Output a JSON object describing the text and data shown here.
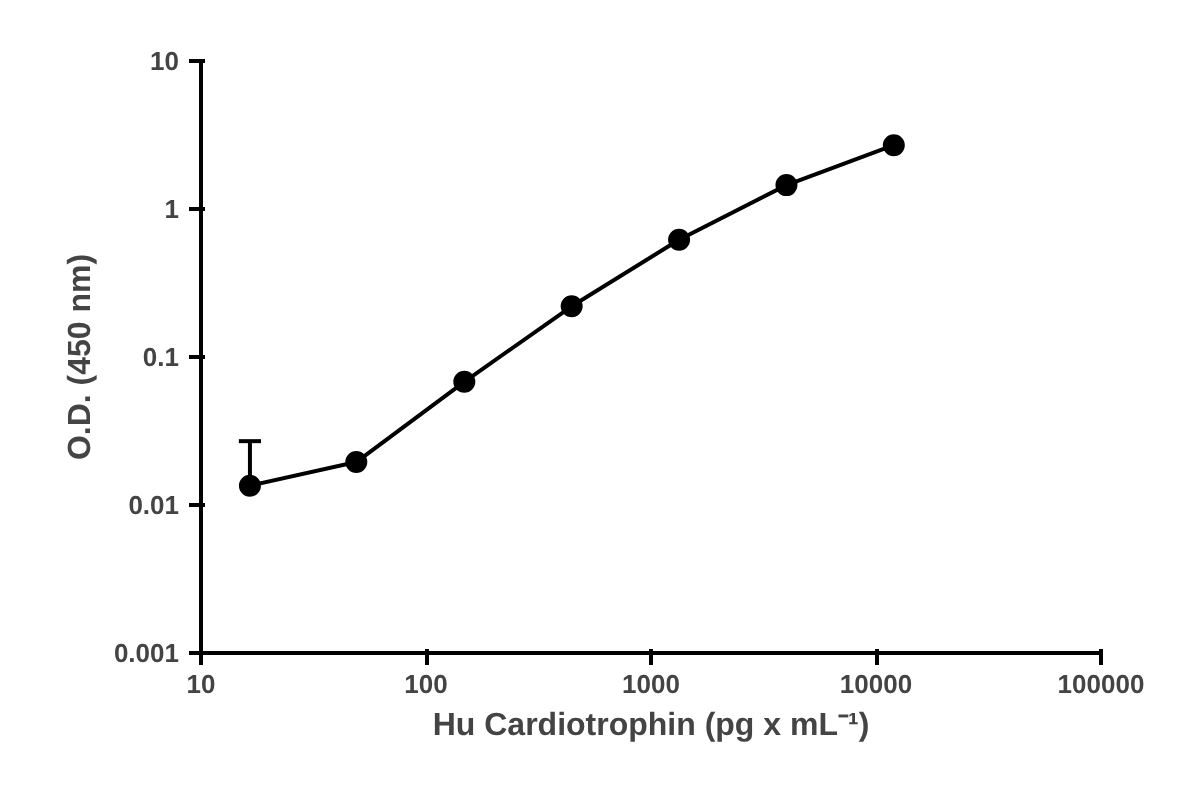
{
  "chart_data": {
    "type": "line",
    "xlabel": "Hu Cardiotrophin (pg x mL⁻¹)",
    "ylabel": "O.D. (450 nm)",
    "x": [
      16.5,
      49,
      148,
      444,
      1333,
      4000,
      12000
    ],
    "series": [
      {
        "color": "#000000",
        "values": [
          0.0135,
          0.0195,
          0.068,
          0.22,
          0.62,
          1.45,
          2.7
        ],
        "errors": [
          [
            0.0135,
            0.027
          ],
          null,
          null,
          null,
          null,
          null,
          null
        ]
      }
    ],
    "log": "xy",
    "xlim": [
      10,
      100000
    ],
    "ylim": [
      0.001,
      10
    ],
    "xticks": [
      10,
      100,
      1000,
      10000,
      100000
    ],
    "yticks": [
      0.001,
      0.01,
      0.1,
      1,
      10
    ],
    "grid": false,
    "marker": "circle",
    "line_style": "solid"
  }
}
